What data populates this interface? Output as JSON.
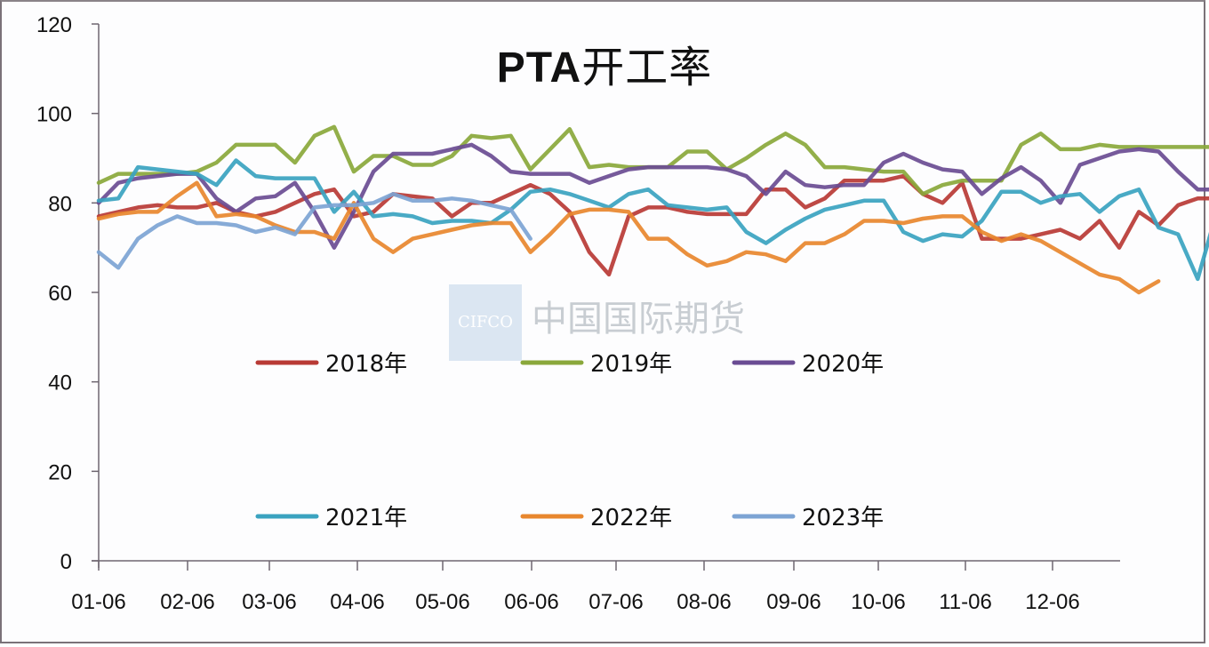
{
  "chart_data": {
    "type": "line",
    "title": "PTA开工率",
    "xlabel": "",
    "ylabel": "",
    "ylim": [
      0,
      120
    ],
    "yticks": [
      0,
      20,
      40,
      60,
      80,
      100,
      120
    ],
    "xtick_labels": [
      "01-06",
      "02-06",
      "03-06",
      "04-06",
      "05-06",
      "06-06",
      "07-06",
      "08-06",
      "09-06",
      "10-06",
      "11-06",
      "12-06"
    ],
    "grid": false,
    "legend_position": "inside-center (two rows)",
    "x_unit": "week index (0 = 01-06, ~4.3 weeks per month)",
    "series": [
      {
        "name": "2018年",
        "color": "#b83a35",
        "values": [
          77,
          78,
          79,
          79.5,
          79,
          79,
          80,
          78,
          77,
          78,
          80,
          82,
          83,
          77,
          78,
          82,
          81.5,
          81,
          77,
          80,
          80,
          82,
          84,
          82,
          78,
          69,
          64,
          77,
          79,
          79,
          78,
          77.5,
          77.5,
          77.5,
          83,
          83,
          79,
          81,
          85,
          85,
          85,
          86,
          82,
          80,
          84.5,
          72,
          72,
          72,
          73,
          74,
          72,
          76,
          70,
          78,
          75,
          79.5,
          81,
          81,
          78
        ]
      },
      {
        "name": "2019年",
        "color": "#8aa83b",
        "values": [
          84.5,
          86.5,
          86.5,
          86.5,
          86.5,
          87,
          89,
          93,
          93,
          93,
          89,
          95,
          97,
          87,
          90.5,
          90.5,
          88.5,
          88.5,
          90.5,
          95,
          94.5,
          95,
          87.5,
          92,
          96.5,
          88,
          88.5,
          88,
          88,
          88,
          91.5,
          91.5,
          87.5,
          90,
          93,
          95.5,
          93,
          88,
          88,
          87.5,
          87,
          87,
          82,
          84,
          85,
          85,
          85,
          93,
          95.5,
          92,
          92,
          93,
          92.5,
          92.5,
          92.5,
          92.5,
          92.5,
          92.5
        ]
      },
      {
        "name": "2020年",
        "color": "#6a4c93",
        "values": [
          80,
          84.5,
          85.5,
          86,
          86.5,
          86.5,
          81,
          78,
          81,
          81.5,
          84.5,
          78,
          70,
          78,
          87,
          91,
          91,
          91,
          92,
          93,
          90.5,
          87,
          86.5,
          86.5,
          86.5,
          84.5,
          86,
          87.5,
          88,
          88,
          88,
          88,
          87.5,
          86,
          82,
          87,
          84,
          83.5,
          84,
          84,
          89,
          91,
          89,
          87.5,
          87,
          82,
          85.5,
          88,
          85,
          80,
          88.5,
          90,
          91.5,
          92,
          91.5,
          87,
          83,
          83,
          83
        ]
      },
      {
        "name": "2021年",
        "color": "#3aa3c0",
        "values": [
          80.5,
          81,
          88,
          87.5,
          87,
          86.5,
          84,
          89.5,
          86,
          85.5,
          85.5,
          85.5,
          78,
          82.5,
          77,
          77.5,
          77,
          75.5,
          76,
          76,
          75.5,
          78.5,
          82.5,
          83,
          82,
          80.5,
          79,
          82,
          83,
          79.5,
          79,
          78.5,
          79,
          73.5,
          71,
          74,
          76.5,
          78.5,
          79.5,
          80.5,
          80.5,
          73.5,
          71.5,
          73,
          72.5,
          76,
          82.5,
          82.5,
          80,
          81.5,
          82,
          78,
          81.5,
          83,
          74.5,
          73,
          63,
          78.5,
          80.5
        ]
      },
      {
        "name": "2022年",
        "color": "#e8872e",
        "values": [
          76.5,
          77.5,
          78,
          78,
          81.5,
          84.5,
          77,
          77.5,
          77,
          75,
          73.5,
          73.5,
          72,
          80,
          72,
          69,
          72,
          73,
          74,
          75,
          75.5,
          75.5,
          69,
          73,
          77.5,
          78.5,
          78.5,
          78,
          72,
          72,
          68.5,
          66,
          67,
          69,
          68.5,
          67,
          71,
          71,
          73,
          76,
          76,
          75.5,
          76.5,
          77,
          77,
          73.5,
          71.5,
          73,
          71.5,
          69,
          66.5,
          64,
          63,
          60,
          62.5
        ]
      },
      {
        "name": "2023年",
        "color": "#7da4d4",
        "values": [
          69,
          65.5,
          72,
          75,
          77,
          75.5,
          75.5,
          75,
          73.5,
          74.5,
          73,
          79,
          79.5,
          79.5,
          80,
          82,
          80.5,
          80.5,
          81,
          80.5,
          79.5,
          78.5,
          72
        ]
      }
    ]
  },
  "title": {
    "latin": "PTA",
    "cjk": "开工率"
  },
  "yaxis": {
    "ticks": [
      "0",
      "20",
      "40",
      "60",
      "80",
      "100",
      "120"
    ]
  },
  "xaxis": {
    "ticks": [
      "01-06",
      "02-06",
      "03-06",
      "04-06",
      "05-06",
      "06-06",
      "07-06",
      "08-06",
      "09-06",
      "10-06",
      "11-06",
      "12-06"
    ]
  },
  "legend": {
    "row1": [
      "2018年",
      "2019年",
      "2020年"
    ],
    "row2": [
      "2021年",
      "2022年",
      "2023年"
    ]
  },
  "watermark": {
    "logo": "CIFCO",
    "text": "中国国际期货"
  }
}
